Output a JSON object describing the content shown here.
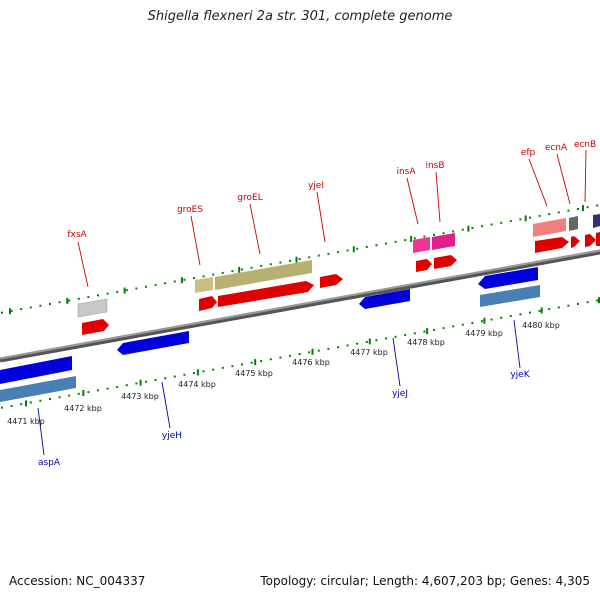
{
  "title": "Shigella flexneri 2a str. 301, complete genome",
  "accession": "Accession: NC_004337",
  "topology": "Topology: circular; Length: 4,607,203 bp; Genes: 4,305",
  "colors": {
    "forward_label": "#cc0000",
    "reverse_label": "#0000aa",
    "tick": "#008000",
    "backbone": "#7a7a7a"
  },
  "kbp_labels": [
    "4471 kbp",
    "4472 kbp",
    "4473 kbp",
    "4474 kbp",
    "4475 kbp",
    "4476 kbp",
    "4477 kbp",
    "4478 kbp",
    "4479 kbp",
    "4480 kbp"
  ],
  "genes": [
    {
      "name": "fxsA",
      "strand": "+"
    },
    {
      "name": "groES",
      "strand": "+"
    },
    {
      "name": "groEL",
      "strand": "+"
    },
    {
      "name": "yjeI",
      "strand": "+"
    },
    {
      "name": "insA",
      "strand": "+"
    },
    {
      "name": "insB",
      "strand": "+"
    },
    {
      "name": "efp",
      "strand": "+"
    },
    {
      "name": "ecnA",
      "strand": "+"
    },
    {
      "name": "ecnB",
      "strand": "+"
    },
    {
      "name": "aspA",
      "strand": "-"
    },
    {
      "name": "yjeH",
      "strand": "-"
    },
    {
      "name": "yjeJ",
      "strand": "-"
    },
    {
      "name": "yjeK",
      "strand": "-"
    }
  ]
}
